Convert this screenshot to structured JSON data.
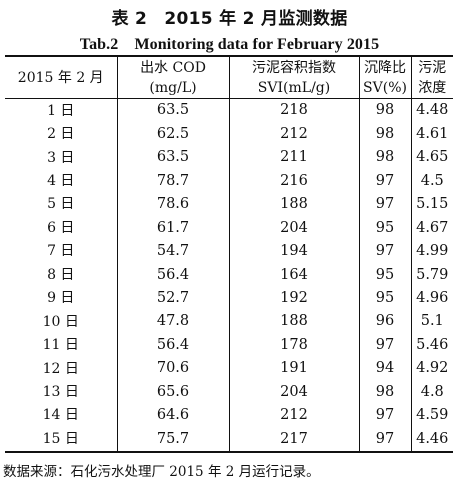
{
  "title_cn": "表 2　2015 年 2 月监测数据",
  "title_en": "Tab.2　Monitoring data for February 2015",
  "headers": [
    {
      "line1": "2015 年 2 月",
      "line2": ""
    },
    {
      "line1": "出水 COD",
      "line2": "(mg/L)"
    },
    {
      "line1": "污泥容积指数",
      "line2": "SVI(mL/g)"
    },
    {
      "line1": "沉降比",
      "line2": "SV(%)"
    },
    {
      "line1": "污泥",
      "line2": "浓度"
    }
  ],
  "rows": [
    {
      "date": "1 日",
      "cod": "63.5",
      "svi": "218",
      "sv": "98",
      "conc": "4.48"
    },
    {
      "date": "2 日",
      "cod": "62.5",
      "svi": "212",
      "sv": "98",
      "conc": "4.61"
    },
    {
      "date": "3 日",
      "cod": "63.5",
      "svi": "211",
      "sv": "98",
      "conc": "4.65"
    },
    {
      "date": "4 日",
      "cod": "78.7",
      "svi": "216",
      "sv": "97",
      "conc": "4.5"
    },
    {
      "date": "5 日",
      "cod": "78.6",
      "svi": "188",
      "sv": "97",
      "conc": "5.15"
    },
    {
      "date": "6 日",
      "cod": "61.7",
      "svi": "204",
      "sv": "95",
      "conc": "4.67"
    },
    {
      "date": "7 日",
      "cod": "54.7",
      "svi": "194",
      "sv": "97",
      "conc": "4.99"
    },
    {
      "date": "8 日",
      "cod": "56.4",
      "svi": "164",
      "sv": "95",
      "conc": "5.79"
    },
    {
      "date": "9 日",
      "cod": "52.7",
      "svi": "192",
      "sv": "95",
      "conc": "4.96"
    },
    {
      "date": "10 日",
      "cod": "47.8",
      "svi": "188",
      "sv": "96",
      "conc": "5.1"
    },
    {
      "date": "11 日",
      "cod": "56.4",
      "svi": "178",
      "sv": "97",
      "conc": "5.46"
    },
    {
      "date": "12 日",
      "cod": "70.6",
      "svi": "191",
      "sv": "94",
      "conc": "4.92"
    },
    {
      "date": "13 日",
      "cod": "65.6",
      "svi": "204",
      "sv": "98",
      "conc": "4.8"
    },
    {
      "date": "14 日",
      "cod": "64.6",
      "svi": "212",
      "sv": "97",
      "conc": "4.59"
    },
    {
      "date": "15 日",
      "cod": "75.7",
      "svi": "217",
      "sv": "97",
      "conc": "4.46"
    }
  ],
  "source_note": "数据来源：石化污水处理厂 2015 年 2 月运行记录。"
}
